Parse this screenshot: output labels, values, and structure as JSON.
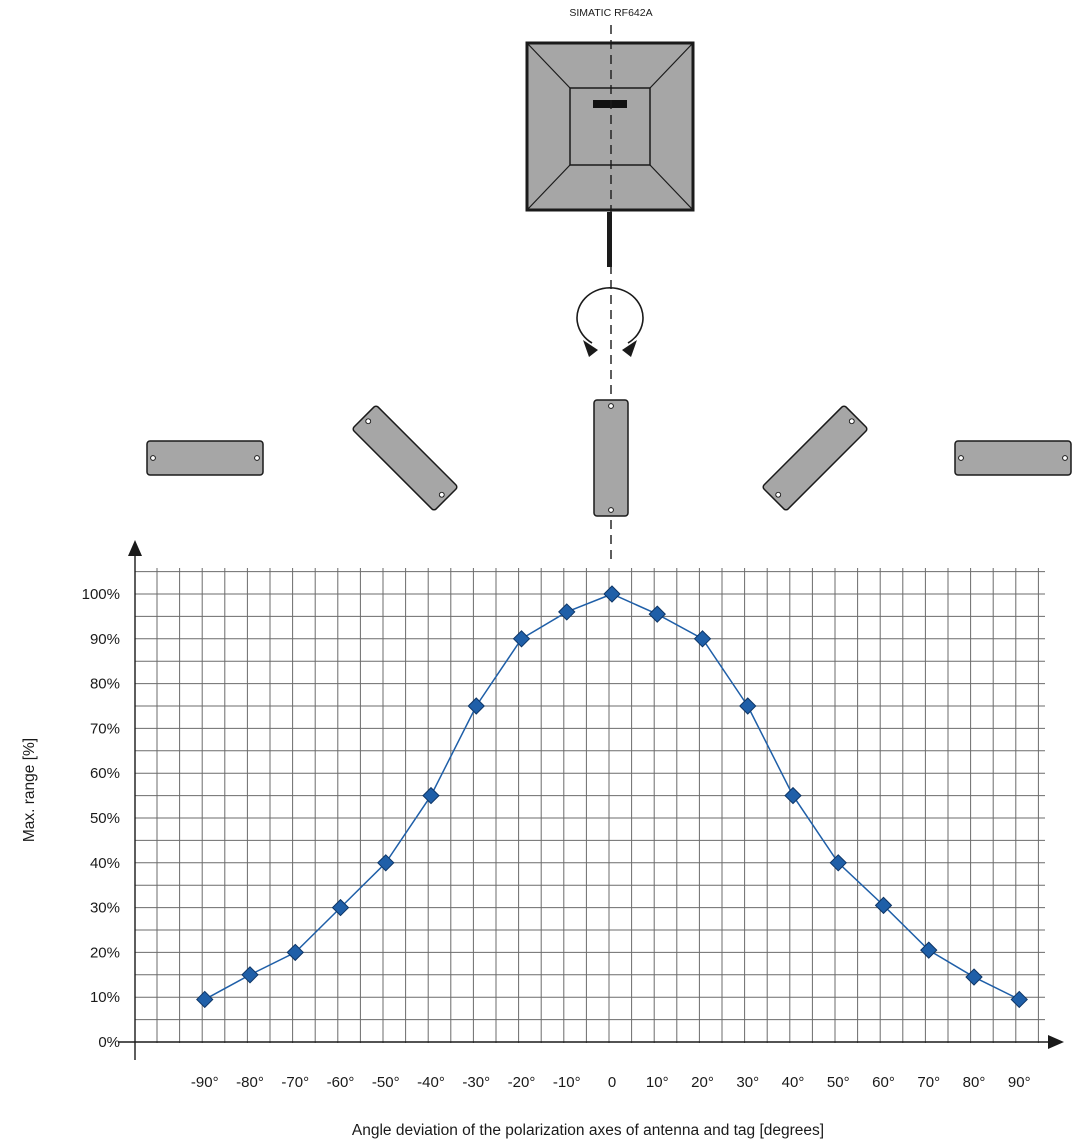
{
  "device": {
    "label": "SIMATIC RF642A"
  },
  "chart_data": {
    "type": "line",
    "xlabel": "Angle deviation of the polarization axes of antenna and tag [degrees]",
    "ylabel": "Max. range [%]",
    "x": [
      -90,
      -80,
      -70,
      -60,
      -50,
      -40,
      -30,
      -20,
      -10,
      0,
      10,
      20,
      30,
      40,
      50,
      60,
      70,
      80,
      90
    ],
    "x_tick_labels": [
      "-90°",
      "-80°",
      "-70°",
      "-60°",
      "-50°",
      "-40°",
      "-30°",
      "-20°",
      "-10°",
      "0",
      "10°",
      "20°",
      "30°",
      "40°",
      "50°",
      "60°",
      "70°",
      "80°",
      "90°"
    ],
    "y_tick_labels": [
      "0%",
      "10%",
      "20%",
      "30%",
      "40%",
      "50%",
      "60%",
      "70%",
      "80%",
      "90%",
      "100%"
    ],
    "series": [
      {
        "values": [
          9.5,
          15,
          20,
          30,
          40,
          55,
          75,
          90,
          96,
          100,
          95.5,
          90,
          75,
          55,
          40,
          30.5,
          20.5,
          14.5,
          9.5
        ],
        "color": "#1f5fa8"
      }
    ],
    "ylim": [
      0,
      100
    ],
    "xlim": [
      -90,
      90
    ],
    "grid": true,
    "marker": "diamond",
    "tag_orientations_deg": [
      -90,
      -45,
      0,
      45,
      90
    ]
  }
}
